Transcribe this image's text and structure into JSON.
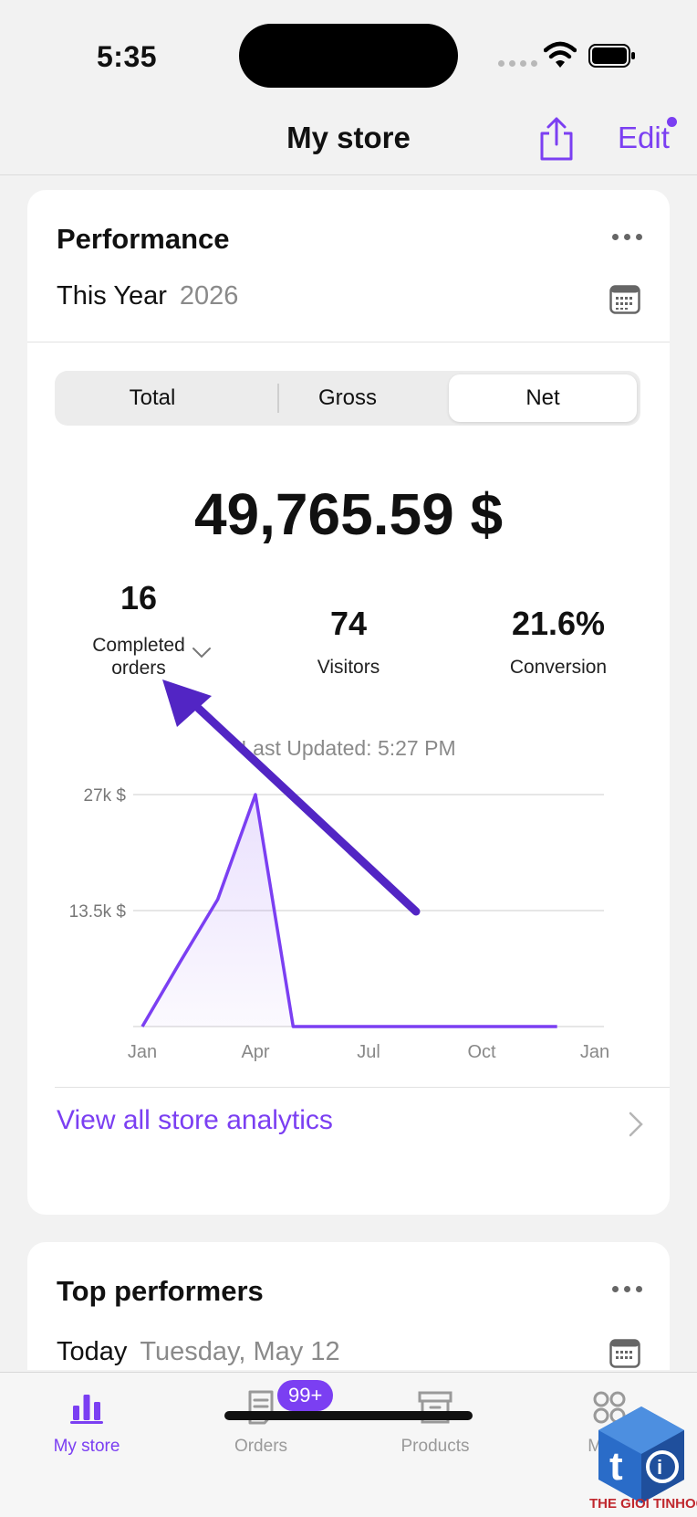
{
  "status_bar": {
    "time": "5:35"
  },
  "nav": {
    "title": "My store",
    "edit_label": "Edit"
  },
  "performance": {
    "title": "Performance",
    "period_label": "This Year",
    "period_value": "2026",
    "segments": [
      "Total",
      "Gross",
      "Net"
    ],
    "selected_segment": "Net",
    "amount": "49,765.59 $",
    "stats": [
      {
        "value": "16",
        "label_line1": "Completed",
        "label_line2": "orders"
      },
      {
        "value": "74",
        "label": "Visitors"
      },
      {
        "value": "21.6%",
        "label": "Conversion"
      }
    ],
    "last_updated": "Last Updated: 5:27 PM",
    "analytics_link": "View all store analytics"
  },
  "chart_data": {
    "type": "area",
    "title": "",
    "xlabel": "",
    "ylabel": "",
    "x_ticks": [
      "Jan",
      "Apr",
      "Jul",
      "Oct",
      "Jan"
    ],
    "y_ticks": [
      "13.5k $",
      "27k $"
    ],
    "ylim": [
      0,
      27000
    ],
    "grid": true,
    "series": [
      {
        "x": [
          "Jan",
          "Feb",
          "Mar",
          "Apr",
          "May",
          "Jun",
          "Jul",
          "Aug",
          "Sep",
          "Oct",
          "Nov",
          "Dec"
        ],
        "values": [
          0,
          7500,
          14800,
          27000,
          0,
          0,
          0,
          0,
          0,
          0,
          0,
          0
        ]
      }
    ],
    "line_color": "#7b3ff2"
  },
  "top_performers": {
    "title": "Top performers",
    "period_label": "Today",
    "period_value": "Tuesday, May 12"
  },
  "tabs": [
    {
      "label": "My store",
      "active": true
    },
    {
      "label": "Orders",
      "badge": "99+"
    },
    {
      "label": "Products"
    },
    {
      "label": "Menu"
    }
  ],
  "watermark": {
    "text": "THE GIOI TINHOC"
  },
  "colors": {
    "accent": "#7b3ff2",
    "annotation_arrow": "#5225c4"
  }
}
